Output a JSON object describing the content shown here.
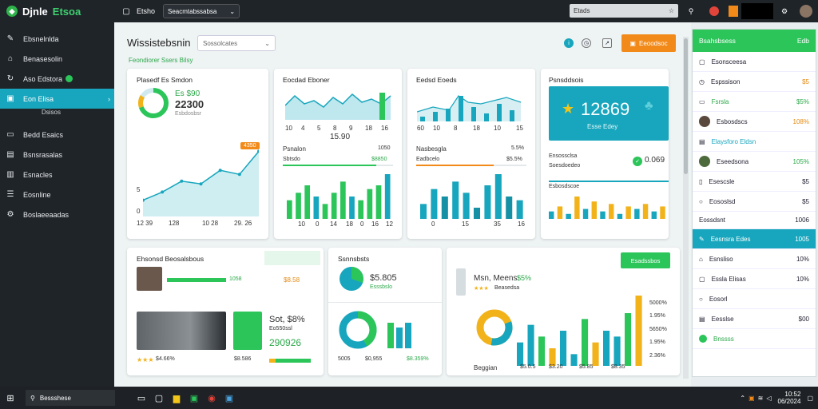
{
  "app": {
    "title_a": "Djnle",
    "title_b": "Etsoa",
    "breadcrumb": "Etsho",
    "workspace": "Seacmtabssabsa"
  },
  "search": {
    "value": "Etads"
  },
  "sidebar": {
    "items": [
      {
        "icon": "wrench-icon",
        "label": "Ebsnelnlda"
      },
      {
        "icon": "home-icon",
        "label": "Benasesolin"
      },
      {
        "icon": "refresh-icon",
        "label": "Aso Edstora"
      },
      {
        "icon": "card-icon",
        "label": "Eon Elisa"
      },
      {
        "icon": "folder-icon",
        "label": "Bedd Esaics"
      },
      {
        "icon": "file-icon",
        "label": "Bsnsrasalas"
      },
      {
        "icon": "briefcase-icon",
        "label": "Esnacles"
      },
      {
        "icon": "list-icon",
        "label": "Eosnline"
      },
      {
        "icon": "gear-icon",
        "label": "Boslaeeaadas"
      }
    ],
    "sub_item": "Dsisos"
  },
  "header": {
    "title": "Wissistebsnin",
    "filter": "Sossolcates",
    "subtitle": "Feondiorer Ssers Bilsy",
    "action_button": "Eeoodsoc"
  },
  "cards": {
    "c1": {
      "title": "Plasedf Es Smdon",
      "kpi_small": "Es $90",
      "kpi_big": "22300",
      "kpi_note": "Esbdosbsr",
      "badge": "4350",
      "axis_y": "5",
      "axis_y0": "0",
      "x_ticks": [
        "12 39",
        "128",
        "10 28",
        "29. 26"
      ]
    },
    "c2": {
      "title": "Eocdad Eboner",
      "value": "15.90",
      "sec": "Psnalon",
      "sec_val": "1050",
      "row": "Sbtsdo",
      "row_val": "$8850",
      "x_ticks": [
        "10",
        "4",
        "5",
        "8",
        "9",
        "18",
        "16"
      ],
      "x2": [
        "10",
        "0",
        "14",
        "18",
        "0",
        "16",
        "12"
      ]
    },
    "c3": {
      "title": "Eedsd Eoeds",
      "sec": "Nasbesgla",
      "sec_val": "5.5%",
      "row": "Eadbcelo",
      "row_val": "$5.5%",
      "x_ticks": [
        "60",
        "10",
        "8",
        "18",
        "10",
        "15"
      ],
      "x2": [
        "0",
        "15",
        "35",
        "16"
      ]
    },
    "c4": {
      "title": "Psnsddsois",
      "banner_value": "12869",
      "banner_note": "Esse Edey",
      "row1": "Ensossclsa",
      "row1_val": "0.069",
      "row2": "Soesdoedeo",
      "row3": "Esbosdscoe"
    },
    "c5": {
      "title": "Ehsonsd Beosalsbous",
      "pct": "1058",
      "val": "$8.58",
      "caption": "$30.0%",
      "big": "Sot, $8%",
      "sub": "Eo550ssl",
      "kpi": "290926",
      "foot1": "$4.66%",
      "foot2": "$8.586"
    },
    "c6": {
      "title": "Ssnnsbsts",
      "val": "$5.805",
      "val_sub": "Esssbslo",
      "foot1": "5005",
      "foot2": "$0,955",
      "foot3": "$8.359%"
    },
    "c7": {
      "title": "Msn, Meens",
      "pct": "$5%",
      "note": "Beasedsa",
      "btn": "Esadssbos",
      "right_vals": [
        "5000%",
        "1.95%",
        "5650%",
        "1.95%",
        "2.36%"
      ],
      "footer": "Beggian",
      "foot_vals": [
        "$5.0.5",
        "$3.20",
        "$5.85",
        "$8.35"
      ]
    }
  },
  "chart_data": [
    {
      "type": "area",
      "x": [
        1,
        2,
        3,
        4,
        5,
        6,
        7
      ],
      "values": [
        1.2,
        1.8,
        2.6,
        2.4,
        3.4,
        3.1,
        4.8
      ]
    },
    {
      "type": "bar",
      "values": [
        5,
        7,
        9,
        6,
        4,
        7,
        10,
        6,
        5,
        8,
        9,
        12
      ]
    },
    {
      "type": "bar",
      "values": [
        4,
        8,
        6,
        10,
        7,
        3,
        9,
        12,
        6,
        5
      ]
    },
    {
      "type": "bar",
      "values": [
        3,
        5,
        2,
        9,
        4,
        7,
        3,
        6,
        2,
        5,
        4,
        6,
        3,
        5
      ]
    }
  ],
  "rpanel": {
    "head": "Bsahsbsess",
    "head_val": "Edb",
    "rows": [
      {
        "label": "Esonsceesa",
        "val": ""
      },
      {
        "label": "Espssison",
        "val": "$5"
      },
      {
        "label": "Fsrsla",
        "val": "$5%"
      },
      {
        "label": "Esbosdscs",
        "val": "108%"
      },
      {
        "label": "Elaysforo Eldsn",
        "val": ""
      },
      {
        "label": "Eseedsona",
        "val": "105%"
      },
      {
        "label": "Esescsle",
        "val": "$5"
      },
      {
        "label": "Eososlsd",
        "val": "$5"
      }
    ],
    "section": "Eossdsnt",
    "section_val": "1006",
    "rows2": [
      {
        "label": "Eesnsra Edes",
        "val": "1005"
      },
      {
        "label": "Esnsliso",
        "val": "10%"
      },
      {
        "label": "Essla Elisas",
        "val": "10%"
      },
      {
        "label": "Eosorl",
        "val": ""
      },
      {
        "label": "Eesslse",
        "val": "$00"
      }
    ],
    "footer": "Bnssss"
  },
  "taskbar": {
    "search": "Bessshese",
    "time": "10:52",
    "date": "06/2024"
  },
  "colors": {
    "accent": "#17a6bd",
    "green": "#2cc55a",
    "orange": "#f28a1a",
    "dark": "#1f2429"
  }
}
